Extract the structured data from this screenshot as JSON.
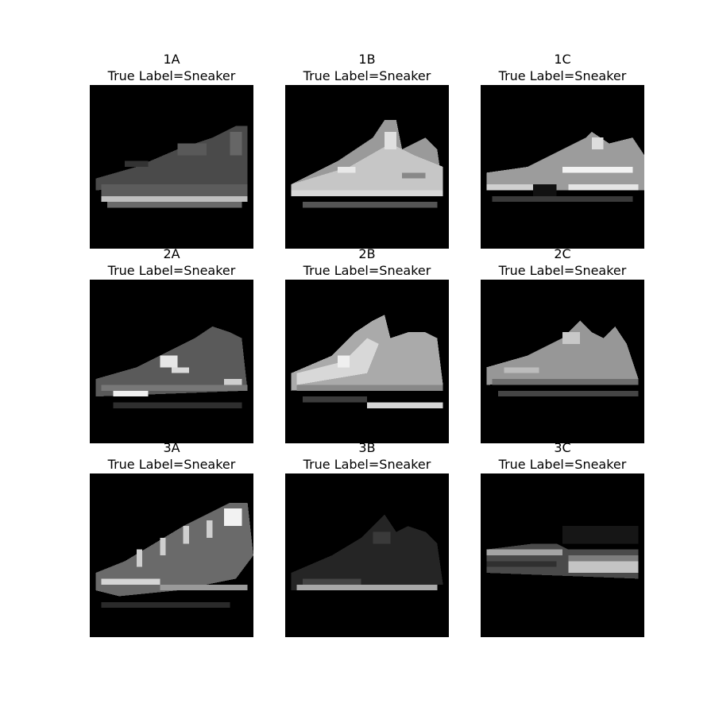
{
  "figure": {
    "panels": [
      {
        "id": "1A",
        "label": "True Label=Sneaker",
        "picture": "sneaker-1A"
      },
      {
        "id": "1B",
        "label": "True Label=Sneaker",
        "picture": "sneaker-1B"
      },
      {
        "id": "1C",
        "label": "True Label=Sneaker",
        "picture": "sneaker-1C"
      },
      {
        "id": "2A",
        "label": "True Label=Sneaker",
        "picture": "sneaker-2A"
      },
      {
        "id": "2B",
        "label": "True Label=Sneaker",
        "picture": "sneaker-2B"
      },
      {
        "id": "2C",
        "label": "True Label=Sneaker",
        "picture": "sneaker-2C"
      },
      {
        "id": "3A",
        "label": "True Label=Sneaker",
        "picture": "sneaker-3A"
      },
      {
        "id": "3B",
        "label": "True Label=Sneaker",
        "picture": "sneaker-3B"
      },
      {
        "id": "3C",
        "label": "True Label=Sneaker",
        "picture": "sneaker-3C"
      }
    ],
    "background_color": "#000000",
    "colormap": "grayscale"
  }
}
